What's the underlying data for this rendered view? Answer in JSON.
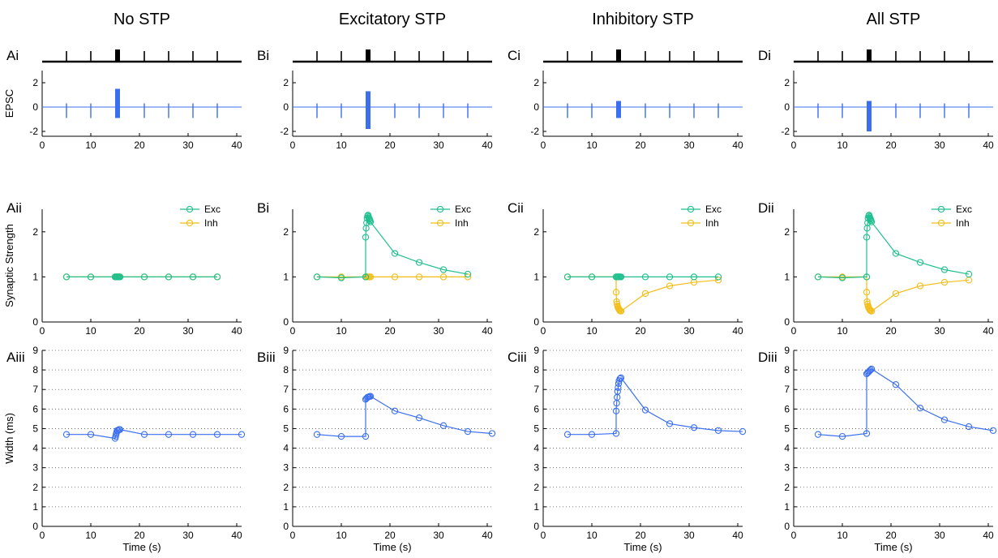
{
  "columns": [
    {
      "title": "No STP",
      "labels": [
        "Ai",
        "Aii",
        "Aiii"
      ]
    },
    {
      "title": "Excitatory STP",
      "labels": [
        "Bi",
        "Bi",
        "Biii"
      ]
    },
    {
      "title": "Inhibitory STP",
      "labels": [
        "Ci",
        "Cii",
        "Ciii"
      ]
    },
    {
      "title": "All STP",
      "labels": [
        "Di",
        "Dii",
        "Diii"
      ]
    }
  ],
  "axis_labels": {
    "epsc_ylabel": "EPSC",
    "strength_ylabel": "Synaptic Strength",
    "width_ylabel": "Width (ms)",
    "xlabel": "Time (s)"
  },
  "legend": {
    "exc": "Exc",
    "inh": "Inh"
  },
  "colors": {
    "exc": "#1fbf8f",
    "inh": "#f2be1a",
    "epsc": "#3b6ff0",
    "width": "#3b6ff0",
    "axis": "#000000",
    "grid": "#555555"
  },
  "stimulus": {
    "ticks_s": [
      5,
      10,
      21,
      26,
      31,
      36
    ],
    "burst_s": [
      15,
      16
    ],
    "xlim": [
      0,
      41
    ]
  },
  "chart_data": [
    {
      "type": "line",
      "name": "EPSC",
      "xlim": [
        0,
        41
      ],
      "ylim": [
        -2.4,
        3
      ],
      "yticks": [
        -2,
        0,
        2
      ],
      "xticks": [
        0,
        10,
        20,
        30,
        40
      ],
      "spike_times": [
        5,
        10,
        21,
        26,
        31,
        36
      ],
      "panels": [
        {
          "column": 0,
          "spike_up": 0.3,
          "spike_down": -0.9,
          "burst": {
            "x": [
              15,
              16
            ],
            "top": 1.5,
            "bottom": -0.9
          }
        },
        {
          "column": 1,
          "spike_up": 0.3,
          "spike_down": -0.9,
          "burst": {
            "x": [
              15,
              16
            ],
            "top": 1.3,
            "bottom": -1.8
          }
        },
        {
          "column": 2,
          "spike_up": 0.3,
          "spike_down": -0.9,
          "burst": {
            "x": [
              15,
              16
            ],
            "top": 0.5,
            "bottom": -0.9
          }
        },
        {
          "column": 3,
          "spike_up": 0.3,
          "spike_down": -0.9,
          "burst": {
            "x": [
              15,
              16
            ],
            "top": 0.5,
            "bottom": -2.0
          }
        }
      ]
    },
    {
      "type": "line",
      "name": "Synaptic Strength",
      "xlim": [
        0,
        41
      ],
      "ylim": [
        0,
        2.5
      ],
      "yticks": [
        0,
        1,
        2
      ],
      "xticks": [
        0,
        10,
        20,
        30,
        40
      ],
      "panels": [
        {
          "column": 0,
          "exc": [
            [
              5,
              1
            ],
            [
              10,
              1
            ],
            [
              15,
              1
            ],
            [
              15.2,
              1
            ],
            [
              15.4,
              1
            ],
            [
              15.6,
              1
            ],
            [
              15.8,
              1
            ],
            [
              16,
              1
            ],
            [
              21,
              1
            ],
            [
              26,
              1
            ],
            [
              31,
              1
            ],
            [
              36,
              1
            ]
          ],
          "inh": [
            [
              5,
              1
            ],
            [
              10,
              1
            ],
            [
              15,
              1
            ],
            [
              15.2,
              1
            ],
            [
              15.4,
              1
            ],
            [
              15.6,
              1
            ],
            [
              15.8,
              1
            ],
            [
              16,
              1
            ],
            [
              21,
              1
            ],
            [
              26,
              1
            ],
            [
              31,
              1
            ],
            [
              36,
              1
            ]
          ]
        },
        {
          "column": 1,
          "exc": [
            [
              5,
              1
            ],
            [
              10,
              0.98
            ],
            [
              15,
              1
            ],
            [
              15,
              1.88
            ],
            [
              15.1,
              2.08
            ],
            [
              15.2,
              2.2
            ],
            [
              15.3,
              2.3
            ],
            [
              15.4,
              2.35
            ],
            [
              15.5,
              2.37
            ],
            [
              15.6,
              2.33
            ],
            [
              15.7,
              2.3
            ],
            [
              15.8,
              2.28
            ],
            [
              15.9,
              2.25
            ],
            [
              16,
              2.22
            ],
            [
              21,
              1.52
            ],
            [
              26,
              1.32
            ],
            [
              31,
              1.16
            ],
            [
              36,
              1.06
            ]
          ],
          "inh": [
            [
              5,
              1
            ],
            [
              10,
              1
            ],
            [
              15,
              1
            ],
            [
              15.2,
              1
            ],
            [
              15.4,
              1
            ],
            [
              15.6,
              1
            ],
            [
              15.8,
              1
            ],
            [
              16,
              1
            ],
            [
              21,
              1
            ],
            [
              26,
              1
            ],
            [
              31,
              1
            ],
            [
              36,
              1
            ]
          ]
        },
        {
          "column": 2,
          "exc": [
            [
              5,
              1
            ],
            [
              10,
              1
            ],
            [
              15,
              1
            ],
            [
              15.2,
              1
            ],
            [
              15.4,
              1
            ],
            [
              15.6,
              1
            ],
            [
              15.8,
              1
            ],
            [
              16,
              1
            ],
            [
              21,
              1
            ],
            [
              26,
              1
            ],
            [
              31,
              1
            ],
            [
              36,
              1
            ]
          ],
          "inh": [
            [
              5,
              1
            ],
            [
              10,
              1
            ],
            [
              15,
              1
            ],
            [
              15,
              0.66
            ],
            [
              15.1,
              0.45
            ],
            [
              15.2,
              0.4
            ],
            [
              15.3,
              0.35
            ],
            [
              15.4,
              0.32
            ],
            [
              15.5,
              0.3
            ],
            [
              15.6,
              0.28
            ],
            [
              15.7,
              0.26
            ],
            [
              15.8,
              0.25
            ],
            [
              16,
              0.24
            ],
            [
              21,
              0.63
            ],
            [
              26,
              0.8
            ],
            [
              31,
              0.88
            ],
            [
              36,
              0.93
            ]
          ]
        },
        {
          "column": 3,
          "exc": [
            [
              5,
              1
            ],
            [
              10,
              0.98
            ],
            [
              15,
              1
            ],
            [
              15,
              1.88
            ],
            [
              15.1,
              2.08
            ],
            [
              15.2,
              2.2
            ],
            [
              15.3,
              2.3
            ],
            [
              15.4,
              2.35
            ],
            [
              15.5,
              2.37
            ],
            [
              15.6,
              2.33
            ],
            [
              15.7,
              2.3
            ],
            [
              15.8,
              2.28
            ],
            [
              15.9,
              2.25
            ],
            [
              16,
              2.22
            ],
            [
              21,
              1.52
            ],
            [
              26,
              1.32
            ],
            [
              31,
              1.16
            ],
            [
              36,
              1.06
            ]
          ],
          "inh": [
            [
              5,
              1
            ],
            [
              10,
              1
            ],
            [
              15,
              1
            ],
            [
              15,
              0.66
            ],
            [
              15.1,
              0.45
            ],
            [
              15.2,
              0.4
            ],
            [
              15.3,
              0.35
            ],
            [
              15.4,
              0.32
            ],
            [
              15.5,
              0.3
            ],
            [
              15.6,
              0.28
            ],
            [
              15.7,
              0.26
            ],
            [
              15.8,
              0.25
            ],
            [
              16,
              0.24
            ],
            [
              21,
              0.63
            ],
            [
              26,
              0.8
            ],
            [
              31,
              0.88
            ],
            [
              36,
              0.93
            ]
          ]
        }
      ]
    },
    {
      "type": "line",
      "name": "Width (ms)",
      "xlim": [
        0,
        41
      ],
      "ylim": [
        0,
        9
      ],
      "yticks": [
        0,
        1,
        2,
        3,
        4,
        5,
        6,
        7,
        8,
        9
      ],
      "xticks": [
        0,
        10,
        20,
        30,
        40
      ],
      "grid": "y-dotted",
      "panels": [
        {
          "column": 0,
          "points": [
            [
              5,
              4.7
            ],
            [
              10,
              4.7
            ],
            [
              15,
              4.5
            ],
            [
              15.1,
              4.6
            ],
            [
              15.2,
              4.7
            ],
            [
              15.3,
              4.8
            ],
            [
              15.4,
              4.9
            ],
            [
              15.6,
              4.9
            ],
            [
              15.8,
              4.95
            ],
            [
              16,
              4.95
            ],
            [
              21,
              4.7
            ],
            [
              26,
              4.7
            ],
            [
              31,
              4.7
            ],
            [
              36,
              4.7
            ],
            [
              41,
              4.7
            ]
          ]
        },
        {
          "column": 1,
          "points": [
            [
              5,
              4.7
            ],
            [
              10,
              4.6
            ],
            [
              15,
              4.6
            ],
            [
              15,
              6.5
            ],
            [
              15.2,
              6.55
            ],
            [
              15.4,
              6.6
            ],
            [
              15.6,
              6.62
            ],
            [
              15.8,
              6.64
            ],
            [
              16,
              6.65
            ],
            [
              21,
              5.9
            ],
            [
              26,
              5.55
            ],
            [
              31,
              5.15
            ],
            [
              36,
              4.85
            ],
            [
              41,
              4.75
            ]
          ]
        },
        {
          "column": 2,
          "points": [
            [
              5,
              4.7
            ],
            [
              10,
              4.7
            ],
            [
              15,
              4.75
            ],
            [
              15,
              5.9
            ],
            [
              15.1,
              6.3
            ],
            [
              15.2,
              6.6
            ],
            [
              15.3,
              6.9
            ],
            [
              15.4,
              7.1
            ],
            [
              15.5,
              7.3
            ],
            [
              15.6,
              7.45
            ],
            [
              15.8,
              7.55
            ],
            [
              16,
              7.6
            ],
            [
              21,
              5.95
            ],
            [
              26,
              5.25
            ],
            [
              31,
              5.05
            ],
            [
              36,
              4.9
            ],
            [
              41,
              4.85
            ]
          ]
        },
        {
          "column": 3,
          "points": [
            [
              5,
              4.7
            ],
            [
              10,
              4.6
            ],
            [
              15,
              4.75
            ],
            [
              15,
              7.8
            ],
            [
              15.2,
              7.85
            ],
            [
              15.4,
              7.9
            ],
            [
              15.6,
              7.95
            ],
            [
              15.8,
              8.0
            ],
            [
              16,
              8.05
            ],
            [
              21,
              7.25
            ],
            [
              26,
              6.05
            ],
            [
              31,
              5.45
            ],
            [
              36,
              5.1
            ],
            [
              41,
              4.9
            ]
          ]
        }
      ]
    }
  ]
}
